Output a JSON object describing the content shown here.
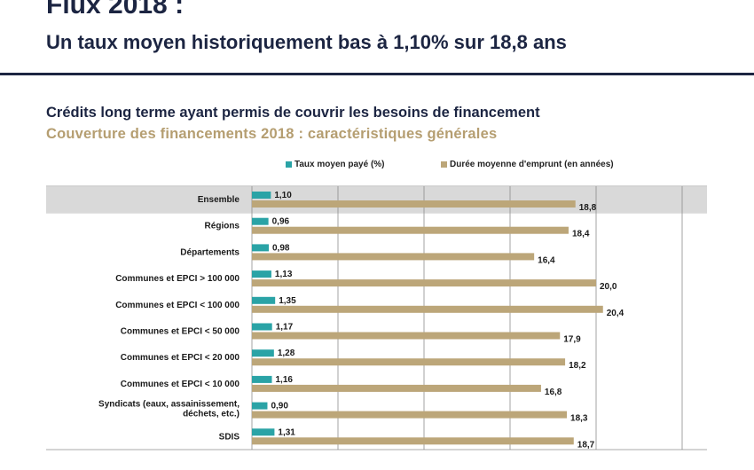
{
  "header": {
    "title": "Flux 2018 :",
    "subtitle": "Un taux moyen historiquement bas à 1,10% sur 18,8 ans"
  },
  "section": {
    "title": "Crédits long terme ayant permis de couvrir les besoins de financement",
    "subtitle": "Couverture des financements 2018 : caractéristiques générales"
  },
  "colors": {
    "navy": "#1c2542",
    "gold": "#b59e71",
    "teal": "#2aa3a6",
    "bar_gold": "#bca679",
    "highlight": "#d9d9d9"
  },
  "chart_data": {
    "type": "bar",
    "orientation": "horizontal",
    "categories": [
      "Ensemble",
      "Régions",
      "Départements",
      "Communes et EPCI > 100 000",
      "Communes et EPCI < 100 000",
      "Communes et EPCI < 50 000",
      "Communes et EPCI < 20 000",
      "Communes et EPCI < 10 000",
      "Syndicats (eaux, assainissement, déchets, etc.)",
      "SDIS"
    ],
    "series": [
      {
        "name": "Taux moyen payé (%)",
        "color": "#2aa3a6",
        "values": [
          1.1,
          0.96,
          0.98,
          1.13,
          1.35,
          1.17,
          1.28,
          1.16,
          0.9,
          1.31
        ],
        "labels": [
          "1,10",
          "0,96",
          "0,98",
          "1,13",
          "1,35",
          "1,17",
          "1,28",
          "1,16",
          "0,90",
          "1,31"
        ]
      },
      {
        "name": "Durée moyenne d'emprunt (en années)",
        "color": "#bca679",
        "values": [
          18.8,
          18.4,
          16.4,
          20.0,
          20.4,
          17.9,
          18.2,
          16.8,
          18.3,
          18.7
        ],
        "labels": [
          "18,8",
          "18,4",
          "16,4",
          "20,0",
          "20,4",
          "17,9",
          "18,2",
          "16,8",
          "18,3",
          "18,7"
        ]
      }
    ],
    "highlighted_category": "Ensemble",
    "xlim": [
      0,
      25
    ],
    "grid": "vertical",
    "legend_position": "top"
  }
}
